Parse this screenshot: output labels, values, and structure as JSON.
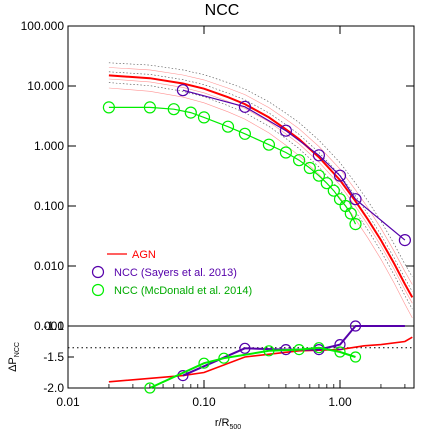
{
  "chart_data": {
    "type": "line",
    "title": "NCC",
    "x_scale": "log",
    "xlim": [
      0.01,
      3.5
    ],
    "x_ticks": [
      0.01,
      0.1,
      1.0
    ],
    "x_tick_labels": [
      "0.01",
      "0.10",
      "1.00"
    ],
    "xlabel_main": "r/R",
    "xlabel_sub": "500",
    "top_panel": {
      "y_scale": "log",
      "ylim": [
        0.001,
        100
      ],
      "y_ticks": [
        0.001,
        0.01,
        0.1,
        1,
        10,
        100
      ],
      "y_tick_labels": [
        "0.001",
        "0.010",
        "0.100",
        "1.000",
        "10.000",
        "100.000"
      ],
      "legend_position": "bottom-left",
      "series": [
        {
          "name": "AGN",
          "color": "#ff0000",
          "x": [
            0.02,
            0.04,
            0.07,
            0.1,
            0.15,
            0.2,
            0.3,
            0.4,
            0.5,
            0.7,
            1.0,
            1.3,
            1.6,
            2.0,
            2.5,
            3.0,
            3.4
          ],
          "y": [
            15,
            13.5,
            11,
            9,
            6.5,
            5,
            3,
            1.9,
            1.3,
            0.65,
            0.27,
            0.12,
            0.06,
            0.027,
            0.011,
            0.005,
            0.003
          ]
        },
        {
          "name": "NCC (Sayers et al. 2013)",
          "color": "#5500aa",
          "marker": "circle",
          "x": [
            0.07,
            0.2,
            0.4,
            0.7,
            1.0,
            1.3,
            3.0
          ],
          "y": [
            8.5,
            4.5,
            1.8,
            0.7,
            0.32,
            0.13,
            0.027
          ]
        },
        {
          "name": "NCC (McDonald et al. 2014)",
          "color": "#00ee00",
          "marker": "circle",
          "x": [
            0.02,
            0.04,
            0.06,
            0.08,
            0.1,
            0.15,
            0.2,
            0.3,
            0.4,
            0.5,
            0.6,
            0.7,
            0.8,
            0.9,
            1.0,
            1.1,
            1.2,
            1.3
          ],
          "y": [
            4.4,
            4.4,
            4.1,
            3.6,
            3.0,
            2.1,
            1.6,
            1.05,
            0.78,
            0.58,
            0.43,
            0.32,
            0.24,
            0.18,
            0.13,
            0.1,
            0.075,
            0.05
          ]
        }
      ]
    },
    "bottom_panel": {
      "ylabel_main": "ΔP",
      "ylabel_sub": "NCC",
      "ylim": [
        -2.0,
        -1.0
      ],
      "y_ticks": [
        -2.0,
        -1.5,
        -1.0
      ],
      "y_tick_labels": [
        "-2.0",
        "-1.5",
        "-1.0"
      ],
      "series": [
        {
          "name": "AGN",
          "color": "#ff0000",
          "x": [
            0.02,
            0.07,
            0.1,
            0.2,
            0.5,
            1.0,
            1.5,
            2.0,
            3.0,
            3.4
          ],
          "y": [
            -1.9,
            -1.8,
            -1.75,
            -1.5,
            -1.4,
            -1.38,
            -1.32,
            -1.3,
            -1.25,
            -1.18
          ]
        },
        {
          "name": "NCC (Sayers et al. 2013)",
          "color": "#5500aa",
          "marker": "circle",
          "x": [
            0.07,
            0.2,
            0.4,
            0.7,
            1.0,
            1.3,
            3.0
          ],
          "y": [
            -1.8,
            -1.36,
            -1.38,
            -1.38,
            -1.3,
            -1.0,
            -0.98
          ]
        },
        {
          "name": "NCC (McDonald et al. 2014)",
          "color": "#00ee00",
          "marker": "circle",
          "x": [
            0.04,
            0.1,
            0.14,
            0.3,
            0.5,
            0.7,
            1.0,
            1.3
          ],
          "y": [
            -2.0,
            -1.6,
            -1.52,
            -1.4,
            -1.38,
            -1.35,
            -1.42,
            -1.5
          ]
        }
      ]
    }
  }
}
